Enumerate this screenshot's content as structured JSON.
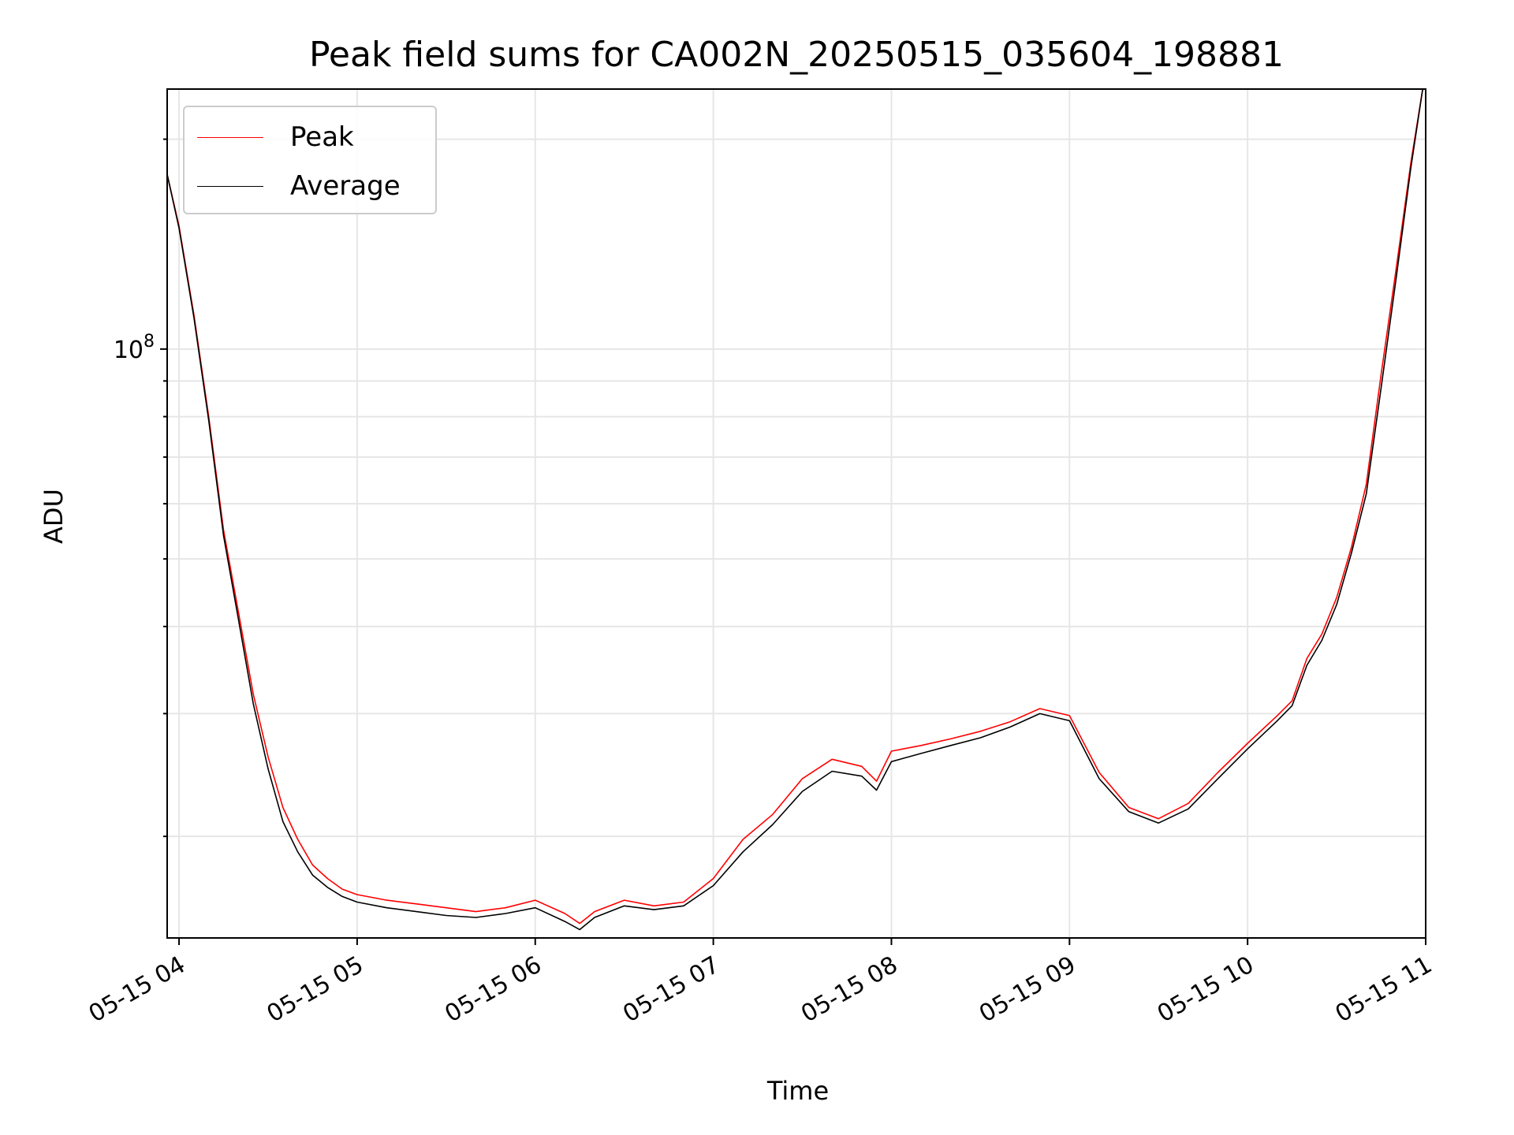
{
  "chart_data": {
    "type": "line",
    "title": "Peak field sums for CA002N_20250515_035604_198881",
    "xlabel": "Time",
    "ylabel": "ADU",
    "yscale": "log",
    "ylim": [
      14300000,
      236000000
    ],
    "xlim": [
      "2025-05-15 03:56",
      "2025-05-15 11:00"
    ],
    "grid": true,
    "legend_position": "upper-left",
    "x_tick_labels": [
      "05-15 04",
      "05-15 05",
      "05-15 06",
      "05-15 07",
      "05-15 08",
      "05-15 09",
      "05-15 10",
      "05-15 11"
    ],
    "x_ticks": [
      "2025-05-15 04:00",
      "2025-05-15 05:00",
      "2025-05-15 06:00",
      "2025-05-15 07:00",
      "2025-05-15 08:00",
      "2025-05-15 09:00",
      "2025-05-15 10:00",
      "2025-05-15 11:00"
    ],
    "y_tick_label": "10^8",
    "y_tick_value": 100000000,
    "series": [
      {
        "name": "Peak",
        "color": "#ff0000",
        "x": [
          "2025-05-15 03:56",
          "2025-05-15 04:00",
          "2025-05-15 04:05",
          "2025-05-15 04:10",
          "2025-05-15 04:15",
          "2025-05-15 04:20",
          "2025-05-15 04:25",
          "2025-05-15 04:30",
          "2025-05-15 04:35",
          "2025-05-15 04:40",
          "2025-05-15 04:45",
          "2025-05-15 04:50",
          "2025-05-15 04:55",
          "2025-05-15 05:00",
          "2025-05-15 05:10",
          "2025-05-15 05:20",
          "2025-05-15 05:30",
          "2025-05-15 05:40",
          "2025-05-15 05:50",
          "2025-05-15 06:00",
          "2025-05-15 06:10",
          "2025-05-15 06:15",
          "2025-05-15 06:20",
          "2025-05-15 06:30",
          "2025-05-15 06:40",
          "2025-05-15 06:50",
          "2025-05-15 07:00",
          "2025-05-15 07:10",
          "2025-05-15 07:20",
          "2025-05-15 07:30",
          "2025-05-15 07:40",
          "2025-05-15 07:50",
          "2025-05-15 07:55",
          "2025-05-15 08:00",
          "2025-05-15 08:10",
          "2025-05-15 08:20",
          "2025-05-15 08:30",
          "2025-05-15 08:40",
          "2025-05-15 08:50",
          "2025-05-15 09:00",
          "2025-05-15 09:10",
          "2025-05-15 09:20",
          "2025-05-15 09:30",
          "2025-05-15 09:40",
          "2025-05-15 09:50",
          "2025-05-15 10:00",
          "2025-05-15 10:10",
          "2025-05-15 10:15",
          "2025-05-15 10:20",
          "2025-05-15 10:25",
          "2025-05-15 10:30",
          "2025-05-15 10:35",
          "2025-05-15 10:40",
          "2025-05-15 10:45",
          "2025-05-15 10:50",
          "2025-05-15 10:55",
          "2025-05-15 10:59"
        ],
        "values": [
          178000000,
          150000000,
          112000000,
          80000000,
          55000000,
          42000000,
          32000000,
          26000000,
          22000000,
          19800000,
          18200000,
          17400000,
          16800000,
          16500000,
          16200000,
          16000000,
          15800000,
          15600000,
          15800000,
          16200000,
          15500000,
          15000000,
          15600000,
          16200000,
          15900000,
          16100000,
          17400000,
          19800000,
          21500000,
          24200000,
          25800000,
          25200000,
          24000000,
          26500000,
          27000000,
          27600000,
          28300000,
          29200000,
          30500000,
          29800000,
          24700000,
          22000000,
          21200000,
          22300000,
          24700000,
          27200000,
          29800000,
          31300000,
          36000000,
          39000000,
          44000000,
          52000000,
          64000000,
          92000000,
          130000000,
          185000000,
          236000000
        ]
      },
      {
        "name": "Average",
        "color": "#000000",
        "x": [
          "2025-05-15 03:56",
          "2025-05-15 04:00",
          "2025-05-15 04:05",
          "2025-05-15 04:10",
          "2025-05-15 04:15",
          "2025-05-15 04:20",
          "2025-05-15 04:25",
          "2025-05-15 04:30",
          "2025-05-15 04:35",
          "2025-05-15 04:40",
          "2025-05-15 04:45",
          "2025-05-15 04:50",
          "2025-05-15 04:55",
          "2025-05-15 05:00",
          "2025-05-15 05:10",
          "2025-05-15 05:20",
          "2025-05-15 05:30",
          "2025-05-15 05:40",
          "2025-05-15 05:50",
          "2025-05-15 06:00",
          "2025-05-15 06:10",
          "2025-05-15 06:15",
          "2025-05-15 06:20",
          "2025-05-15 06:30",
          "2025-05-15 06:40",
          "2025-05-15 06:50",
          "2025-05-15 07:00",
          "2025-05-15 07:10",
          "2025-05-15 07:20",
          "2025-05-15 07:30",
          "2025-05-15 07:40",
          "2025-05-15 07:50",
          "2025-05-15 07:55",
          "2025-05-15 08:00",
          "2025-05-15 08:10",
          "2025-05-15 08:20",
          "2025-05-15 08:30",
          "2025-05-15 08:40",
          "2025-05-15 08:50",
          "2025-05-15 09:00",
          "2025-05-15 09:10",
          "2025-05-15 09:20",
          "2025-05-15 09:30",
          "2025-05-15 09:40",
          "2025-05-15 09:50",
          "2025-05-15 10:00",
          "2025-05-15 10:10",
          "2025-05-15 10:15",
          "2025-05-15 10:20",
          "2025-05-15 10:25",
          "2025-05-15 10:30",
          "2025-05-15 10:35",
          "2025-05-15 10:40",
          "2025-05-15 10:45",
          "2025-05-15 10:50",
          "2025-05-15 10:55",
          "2025-05-15 10:59"
        ],
        "values": [
          178000000,
          149000000,
          111000000,
          79000000,
          54000000,
          41000000,
          31000000,
          25000000,
          21000000,
          19000000,
          17600000,
          16900000,
          16400000,
          16100000,
          15800000,
          15600000,
          15400000,
          15300000,
          15500000,
          15800000,
          15100000,
          14700000,
          15300000,
          15900000,
          15700000,
          15900000,
          17000000,
          19000000,
          20800000,
          23200000,
          24800000,
          24400000,
          23300000,
          25600000,
          26300000,
          27000000,
          27700000,
          28700000,
          30000000,
          29300000,
          24200000,
          21700000,
          20900000,
          21900000,
          24200000,
          26700000,
          29300000,
          30800000,
          35200000,
          38200000,
          43000000,
          51000000,
          62000000,
          88000000,
          126000000,
          182000000,
          236000000
        ]
      }
    ]
  }
}
